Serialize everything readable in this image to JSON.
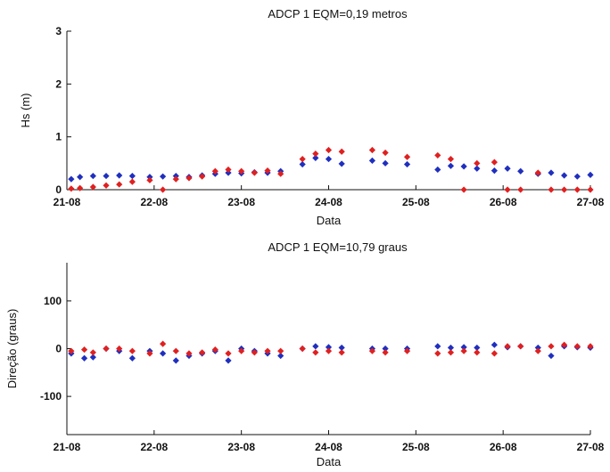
{
  "chart_data": [
    {
      "type": "scatter",
      "title": "ADCP 1 EQM=0,19 metros",
      "xlabel": "Data",
      "ylabel": "Hs (m)",
      "x_ticks": [
        "21-08",
        "22-08",
        "23-08",
        "24-08",
        "25-08",
        "26-08",
        "27-08"
      ],
      "xlim": [
        21,
        27
      ],
      "ylim": [
        0,
        3
      ],
      "y_ticks": [
        0,
        1,
        2,
        3
      ],
      "grid": false,
      "series": [
        {
          "color": "#1f2fbf",
          "x": [
            21.05,
            21.15,
            21.3,
            21.45,
            21.6,
            21.75,
            21.95,
            22.1,
            22.25,
            22.4,
            22.55,
            22.7,
            22.85,
            23.0,
            23.15,
            23.3,
            23.45,
            23.7,
            23.85,
            24.0,
            24.15,
            24.5,
            24.65,
            24.9,
            25.25,
            25.4,
            25.55,
            25.7,
            25.9,
            26.05,
            26.2,
            26.4,
            26.55,
            26.7,
            26.85,
            27.0
          ],
          "y": [
            0.2,
            0.24,
            0.26,
            0.26,
            0.27,
            0.26,
            0.24,
            0.25,
            0.26,
            0.24,
            0.27,
            0.3,
            0.32,
            0.31,
            0.33,
            0.32,
            0.35,
            0.48,
            0.6,
            0.58,
            0.49,
            0.55,
            0.5,
            0.48,
            0.38,
            0.45,
            0.44,
            0.4,
            0.36,
            0.4,
            0.35,
            0.3,
            0.32,
            0.27,
            0.25,
            0.28
          ]
        },
        {
          "color": "#e02020",
          "x": [
            21.05,
            21.15,
            21.3,
            21.45,
            21.6,
            21.75,
            21.95,
            22.1,
            22.25,
            22.4,
            22.55,
            22.7,
            22.85,
            23.0,
            23.15,
            23.3,
            23.45,
            23.7,
            23.85,
            24.0,
            24.15,
            24.5,
            24.65,
            24.9,
            25.25,
            25.4,
            25.55,
            25.7,
            25.9,
            26.05,
            26.2,
            26.4,
            26.55,
            26.7,
            26.85,
            27.0
          ],
          "y": [
            0.02,
            0.03,
            0.05,
            0.08,
            0.1,
            0.15,
            0.18,
            0.0,
            0.2,
            0.22,
            0.25,
            0.35,
            0.38,
            0.35,
            0.32,
            0.36,
            0.3,
            0.58,
            0.68,
            0.75,
            0.72,
            0.75,
            0.7,
            0.62,
            0.65,
            0.58,
            0.0,
            0.5,
            0.52,
            0.0,
            0.0,
            0.32,
            0.0,
            0.0,
            0.0,
            0.0
          ]
        }
      ]
    },
    {
      "type": "scatter",
      "title": "ADCP 1 EQM=10,79 graus",
      "xlabel": "Data",
      "ylabel": "Direção (graus)",
      "x_ticks": [
        "21-08",
        "22-08",
        "23-08",
        "24-08",
        "25-08",
        "26-08",
        "27-08"
      ],
      "xlim": [
        21,
        27
      ],
      "ylim": [
        -180,
        180
      ],
      "y_ticks": [
        -100,
        0,
        100
      ],
      "grid": false,
      "series": [
        {
          "color": "#1f2fbf",
          "x": [
            21.05,
            21.2,
            21.3,
            21.45,
            21.6,
            21.75,
            21.95,
            22.1,
            22.25,
            22.4,
            22.55,
            22.7,
            22.85,
            23.0,
            23.15,
            23.3,
            23.45,
            23.7,
            23.85,
            24.0,
            24.15,
            24.5,
            24.65,
            24.9,
            25.25,
            25.4,
            25.55,
            25.7,
            25.9,
            26.05,
            26.2,
            26.4,
            26.55,
            26.7,
            26.85,
            27.0
          ],
          "y": [
            -10,
            -20,
            -18,
            0,
            -5,
            -20,
            -5,
            -10,
            -25,
            -15,
            -10,
            -5,
            -25,
            0,
            -5,
            -10,
            -15,
            0,
            5,
            3,
            2,
            0,
            0,
            0,
            5,
            2,
            3,
            2,
            8,
            3,
            5,
            2,
            -15,
            5,
            3,
            2
          ]
        },
        {
          "color": "#e02020",
          "x": [
            21.05,
            21.2,
            21.3,
            21.45,
            21.6,
            21.75,
            21.95,
            22.1,
            22.25,
            22.4,
            22.55,
            22.7,
            22.85,
            23.0,
            23.15,
            23.3,
            23.45,
            23.7,
            23.85,
            24.0,
            24.15,
            24.5,
            24.65,
            24.9,
            25.25,
            25.4,
            25.55,
            25.7,
            25.9,
            26.05,
            26.2,
            26.4,
            26.55,
            26.7,
            26.85,
            27.0
          ],
          "y": [
            -5,
            -2,
            -8,
            0,
            0,
            -5,
            -10,
            10,
            -5,
            -10,
            -8,
            -2,
            -10,
            -5,
            -8,
            -5,
            -5,
            0,
            -8,
            -5,
            -8,
            -5,
            -8,
            -5,
            -10,
            -8,
            -5,
            -8,
            -10,
            5,
            5,
            -5,
            5,
            8,
            5,
            5
          ]
        }
      ]
    }
  ]
}
